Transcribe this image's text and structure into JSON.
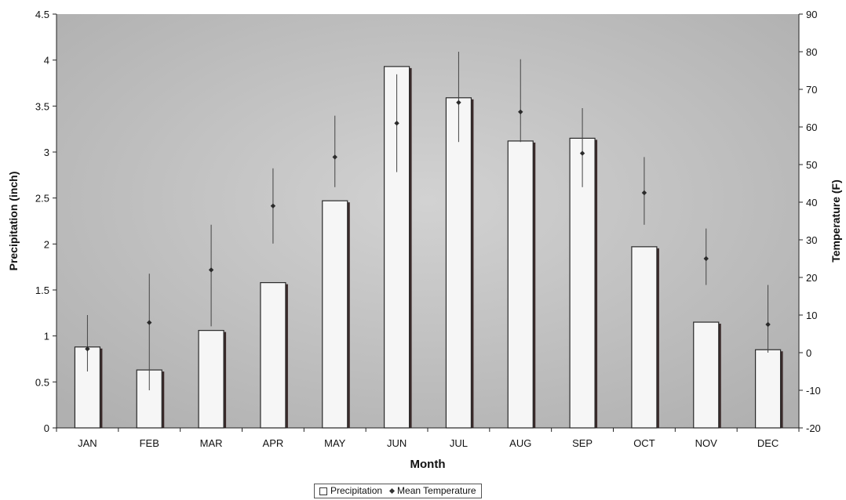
{
  "chart_data": {
    "type": "bar",
    "categories": [
      "JAN",
      "FEB",
      "MAR",
      "APR",
      "MAY",
      "JUN",
      "JUL",
      "AUG",
      "SEP",
      "OCT",
      "NOV",
      "DEC"
    ],
    "xlabel": "Month",
    "ylabel": "Precipitation (inch)",
    "y2label": "Temperature (F)",
    "ylim": [
      0,
      4.5
    ],
    "yticks": [
      "0",
      "0.5",
      "1",
      "1.5",
      "2",
      "2.5",
      "3",
      "3.5",
      "4",
      "4.5"
    ],
    "y2lim": [
      -20,
      90
    ],
    "y2ticks": [
      "-20",
      "-10",
      "0",
      "10",
      "20",
      "30",
      "40",
      "50",
      "60",
      "70",
      "80",
      "90"
    ],
    "series": [
      {
        "name": "Precipitation",
        "type": "bar",
        "axis": "left",
        "values": [
          0.88,
          0.63,
          1.06,
          1.58,
          2.47,
          3.93,
          3.59,
          3.12,
          3.15,
          1.97,
          1.15,
          0.85
        ]
      },
      {
        "name": "Mean Temperature",
        "type": "scatter",
        "axis": "right",
        "values": [
          1,
          8,
          22,
          39,
          52,
          61,
          66.5,
          64,
          53,
          42.5,
          25,
          7.5
        ],
        "error_low": [
          -5,
          -10,
          7,
          29,
          44,
          48,
          56,
          56,
          44,
          34,
          18,
          0
        ],
        "error_high": [
          10,
          21,
          34,
          49,
          63,
          74,
          80,
          78,
          65,
          52,
          33,
          18
        ]
      }
    ],
    "legend_position": "bottom-center",
    "grid": false,
    "colors": {
      "plot_bg": "#c4c4c4",
      "bar_fill": "#f6f6f6",
      "bar_edge": "#2a2a2a",
      "marker": "#2b2b2b"
    }
  },
  "legend": {
    "precipitation_label": "Precipitation",
    "temperature_label": "Mean Temperature"
  }
}
